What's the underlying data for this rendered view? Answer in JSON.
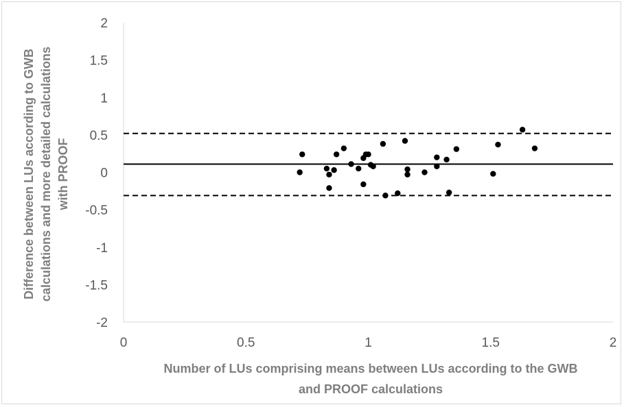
{
  "chart_data": {
    "type": "scatter",
    "title": "",
    "xlabel_lines": [
      "Number of LUs comprising means between LUs according to the GWB",
      "and PROOF calculations"
    ],
    "ylabel_lines": [
      "Difference between LUs according to GWB",
      "calculations and more detailed calculations",
      "with PROOF"
    ],
    "xlim": [
      0,
      2
    ],
    "ylim": [
      -2,
      2
    ],
    "x_ticks": [
      "0",
      "0.5",
      "1",
      "1.5",
      "2"
    ],
    "y_ticks": [
      "2",
      "1.5",
      "1",
      "0.5",
      "0",
      "-0.5",
      "-1",
      "-1.5",
      "-2"
    ],
    "x_tick_values": [
      0,
      0.5,
      1,
      1.5,
      2
    ],
    "y_tick_values": [
      2,
      1.5,
      1,
      0.5,
      0,
      -0.5,
      -1,
      -1.5,
      -2
    ],
    "grid": false,
    "reference_lines": [
      {
        "kind": "mean",
        "y": 0.11,
        "style": "solid"
      },
      {
        "kind": "upper-limit",
        "y": 0.52,
        "style": "dashed"
      },
      {
        "kind": "lower-limit",
        "y": -0.31,
        "style": "dashed"
      }
    ],
    "points": [
      {
        "x": 0.72,
        "y": 0.0
      },
      {
        "x": 0.73,
        "y": 0.24
      },
      {
        "x": 0.83,
        "y": 0.05
      },
      {
        "x": 0.84,
        "y": -0.03
      },
      {
        "x": 0.84,
        "y": -0.21
      },
      {
        "x": 0.86,
        "y": 0.03
      },
      {
        "x": 0.87,
        "y": 0.24
      },
      {
        "x": 0.9,
        "y": 0.32
      },
      {
        "x": 0.93,
        "y": 0.11
      },
      {
        "x": 0.96,
        "y": 0.05
      },
      {
        "x": 0.98,
        "y": 0.19
      },
      {
        "x": 0.98,
        "y": -0.16
      },
      {
        "x": 0.99,
        "y": 0.24
      },
      {
        "x": 1.0,
        "y": 0.24
      },
      {
        "x": 1.01,
        "y": 0.1
      },
      {
        "x": 1.02,
        "y": 0.08
      },
      {
        "x": 1.06,
        "y": 0.38
      },
      {
        "x": 1.07,
        "y": -0.31
      },
      {
        "x": 1.12,
        "y": -0.28
      },
      {
        "x": 1.15,
        "y": 0.42
      },
      {
        "x": 1.16,
        "y": 0.04
      },
      {
        "x": 1.16,
        "y": -0.03
      },
      {
        "x": 1.23,
        "y": 0.0
      },
      {
        "x": 1.28,
        "y": 0.2
      },
      {
        "x": 1.28,
        "y": 0.08
      },
      {
        "x": 1.32,
        "y": 0.17
      },
      {
        "x": 1.33,
        "y": -0.27
      },
      {
        "x": 1.36,
        "y": 0.31
      },
      {
        "x": 1.51,
        "y": -0.02
      },
      {
        "x": 1.53,
        "y": 0.37
      },
      {
        "x": 1.63,
        "y": 0.57
      },
      {
        "x": 1.68,
        "y": 0.32
      }
    ],
    "colors": {
      "points": "#000000",
      "lines": "#000000",
      "axis": "#d9d9d9",
      "tick_text": "#595959",
      "title_text": "#7f7f7f"
    }
  }
}
